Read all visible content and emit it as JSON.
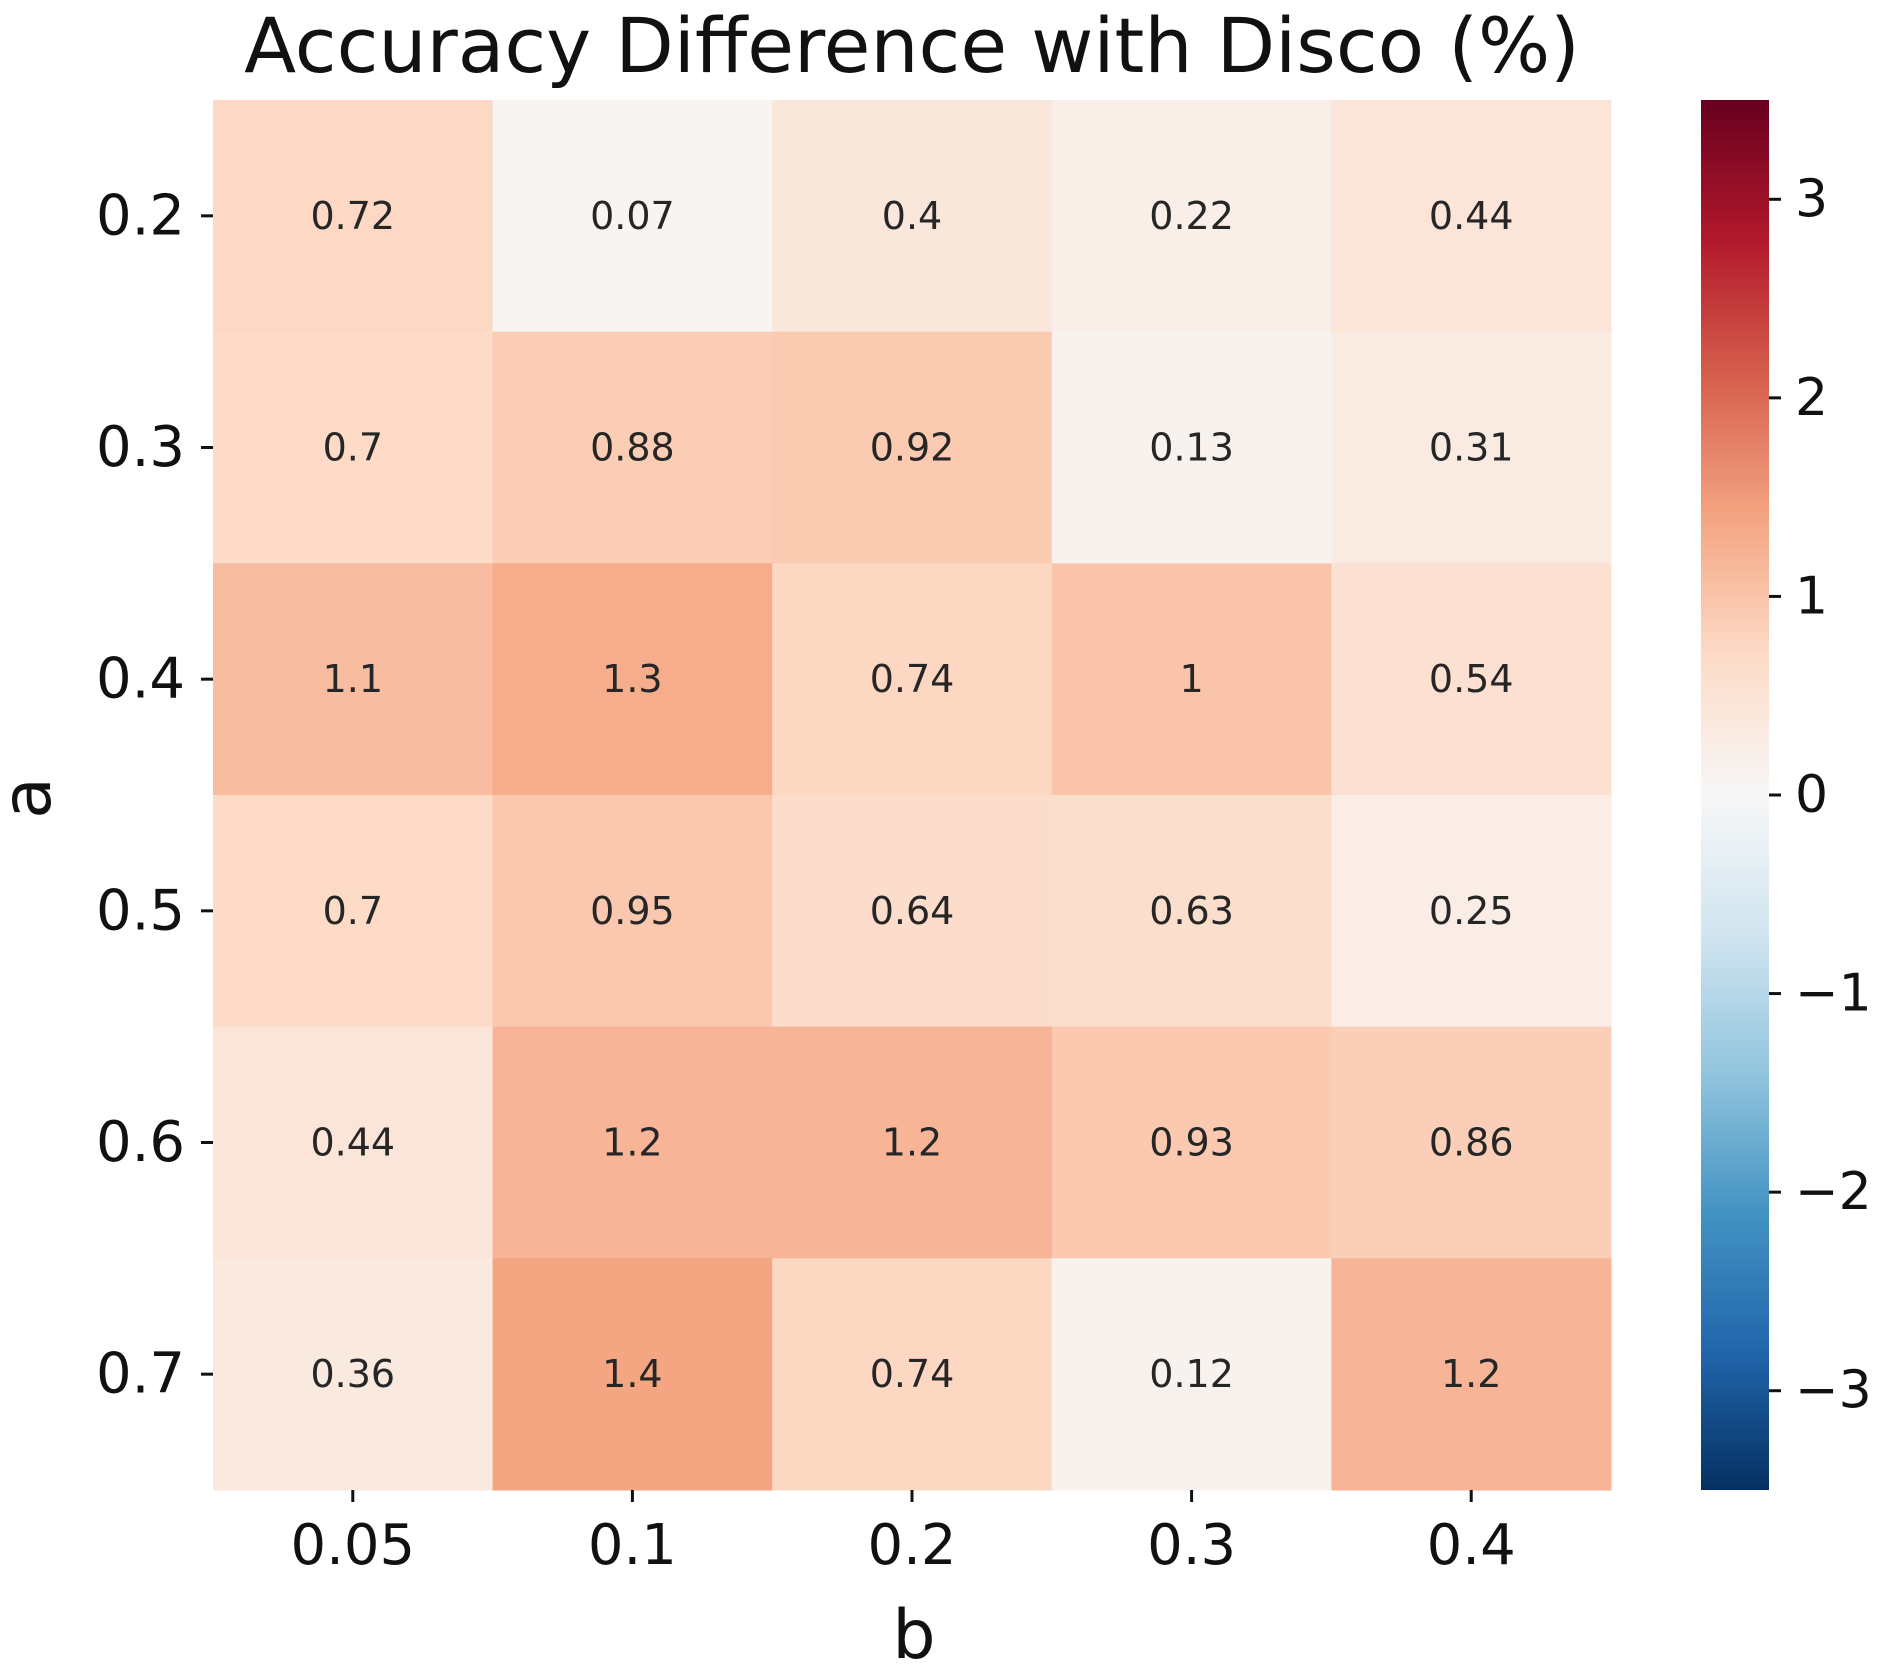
{
  "chart_data": {
    "type": "heatmap",
    "title": "Accuracy Difference with Disco (%)",
    "xlabel": "b",
    "ylabel": "a",
    "x_categories": [
      "0.05",
      "0.1",
      "0.2",
      "0.3",
      "0.4"
    ],
    "y_categories": [
      "0.2",
      "0.3",
      "0.4",
      "0.5",
      "0.6",
      "0.7"
    ],
    "values": [
      [
        0.72,
        0.07,
        0.4,
        0.22,
        0.44
      ],
      [
        0.7,
        0.88,
        0.92,
        0.13,
        0.31
      ],
      [
        1.1,
        1.3,
        0.74,
        1,
        0.54
      ],
      [
        0.7,
        0.95,
        0.64,
        0.63,
        0.25
      ],
      [
        0.44,
        1.2,
        1.2,
        0.93,
        0.86
      ],
      [
        0.36,
        1.4,
        0.74,
        0.12,
        1.2
      ]
    ],
    "cell_labels": [
      [
        "0.72",
        "0.07",
        "0.4",
        "0.22",
        "0.44"
      ],
      [
        "0.7",
        "0.88",
        "0.92",
        "0.13",
        "0.31"
      ],
      [
        "1.1",
        "1.3",
        "0.74",
        "1",
        "0.54"
      ],
      [
        "0.7",
        "0.95",
        "0.64",
        "0.63",
        "0.25"
      ],
      [
        "0.44",
        "1.2",
        "1.2",
        "0.93",
        "0.86"
      ],
      [
        "0.36",
        "1.4",
        "0.74",
        "0.12",
        "1.2"
      ]
    ],
    "colormap": "RdBu_r",
    "colorbar": {
      "range": [
        -3.5,
        3.5
      ],
      "ticks": [
        3,
        2,
        1,
        0,
        -1,
        -2,
        -3
      ],
      "tick_labels": [
        "3",
        "2",
        "1",
        "0",
        "−1",
        "−2",
        "−3"
      ]
    }
  }
}
